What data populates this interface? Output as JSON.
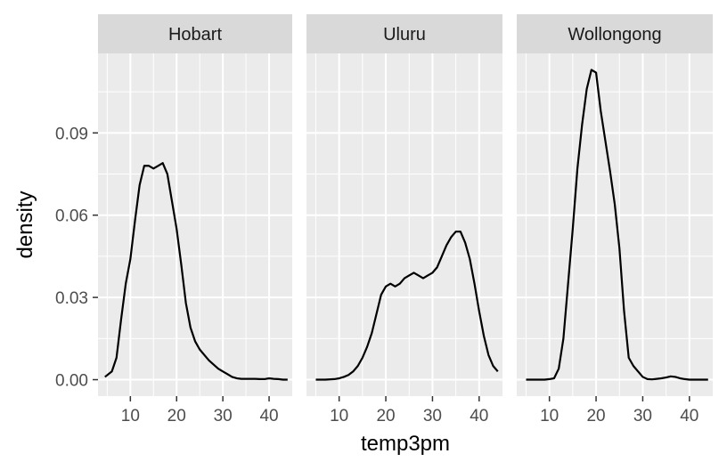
{
  "chart_data": {
    "type": "line",
    "chart_kind": "density (faceted)",
    "xlabel": "temp3pm",
    "ylabel": "density",
    "xlim": [
      3,
      45
    ],
    "ylim": [
      -0.006,
      0.119
    ],
    "x_ticks": [
      10,
      20,
      30,
      40
    ],
    "x_tick_labels": [
      "10",
      "20",
      "30",
      "40"
    ],
    "y_ticks": [
      0.0,
      0.03,
      0.06,
      0.09
    ],
    "y_tick_labels": [
      "0.00",
      "0.03",
      "0.06",
      "0.09"
    ],
    "grid": true,
    "facets": [
      {
        "label": "Hobart",
        "x": [
          4.5,
          6,
          7,
          8,
          9,
          10,
          11,
          12,
          13,
          14,
          15,
          16,
          17,
          18,
          19,
          20,
          21,
          22,
          23,
          24,
          25,
          26,
          27,
          28,
          29,
          30,
          31,
          32,
          33,
          34,
          35,
          36,
          37,
          38,
          39,
          40,
          41,
          42,
          43,
          44
        ],
        "y": [
          0.001,
          0.003,
          0.008,
          0.022,
          0.035,
          0.044,
          0.058,
          0.071,
          0.078,
          0.078,
          0.077,
          0.078,
          0.079,
          0.075,
          0.065,
          0.055,
          0.042,
          0.028,
          0.019,
          0.014,
          0.011,
          0.009,
          0.007,
          0.0055,
          0.004,
          0.003,
          0.002,
          0.001,
          0.0005,
          0.0003,
          0.0003,
          0.0003,
          0.0003,
          0.0002,
          0.0002,
          0.0005,
          0.0003,
          0.0002,
          0.0,
          0.0
        ]
      },
      {
        "label": "Uluru",
        "x": [
          5,
          7,
          9,
          10,
          11,
          12,
          13,
          14,
          15,
          16,
          17,
          18,
          19,
          20,
          21,
          22,
          23,
          24,
          25,
          26,
          27,
          28,
          29,
          30,
          31,
          32,
          33,
          34,
          35,
          36,
          37,
          38,
          39,
          40,
          41,
          42,
          43,
          44
        ],
        "y": [
          0.0,
          0.0,
          0.0002,
          0.0005,
          0.001,
          0.0017,
          0.003,
          0.005,
          0.008,
          0.012,
          0.017,
          0.024,
          0.031,
          0.034,
          0.035,
          0.034,
          0.035,
          0.037,
          0.038,
          0.039,
          0.038,
          0.037,
          0.038,
          0.039,
          0.041,
          0.045,
          0.049,
          0.052,
          0.054,
          0.054,
          0.05,
          0.044,
          0.035,
          0.025,
          0.016,
          0.009,
          0.005,
          0.003
        ]
      },
      {
        "label": "Wollongong",
        "x": [
          5,
          9,
          10,
          11,
          12,
          13,
          14,
          15,
          16,
          17,
          18,
          19,
          20,
          21,
          22,
          23,
          24,
          25,
          26,
          27,
          28,
          29,
          30,
          31,
          32,
          33,
          34,
          35,
          36,
          37,
          38,
          39,
          40,
          41,
          42,
          43,
          44
        ],
        "y": [
          0.0,
          0.0,
          0.0002,
          0.0005,
          0.004,
          0.015,
          0.035,
          0.055,
          0.077,
          0.093,
          0.106,
          0.113,
          0.112,
          0.098,
          0.087,
          0.076,
          0.064,
          0.048,
          0.025,
          0.008,
          0.005,
          0.003,
          0.001,
          0.0002,
          0.0001,
          0.0003,
          0.0005,
          0.0008,
          0.0012,
          0.001,
          0.0005,
          0.0002,
          0.0,
          0.0,
          0.0,
          0.0,
          0.0
        ]
      }
    ]
  }
}
